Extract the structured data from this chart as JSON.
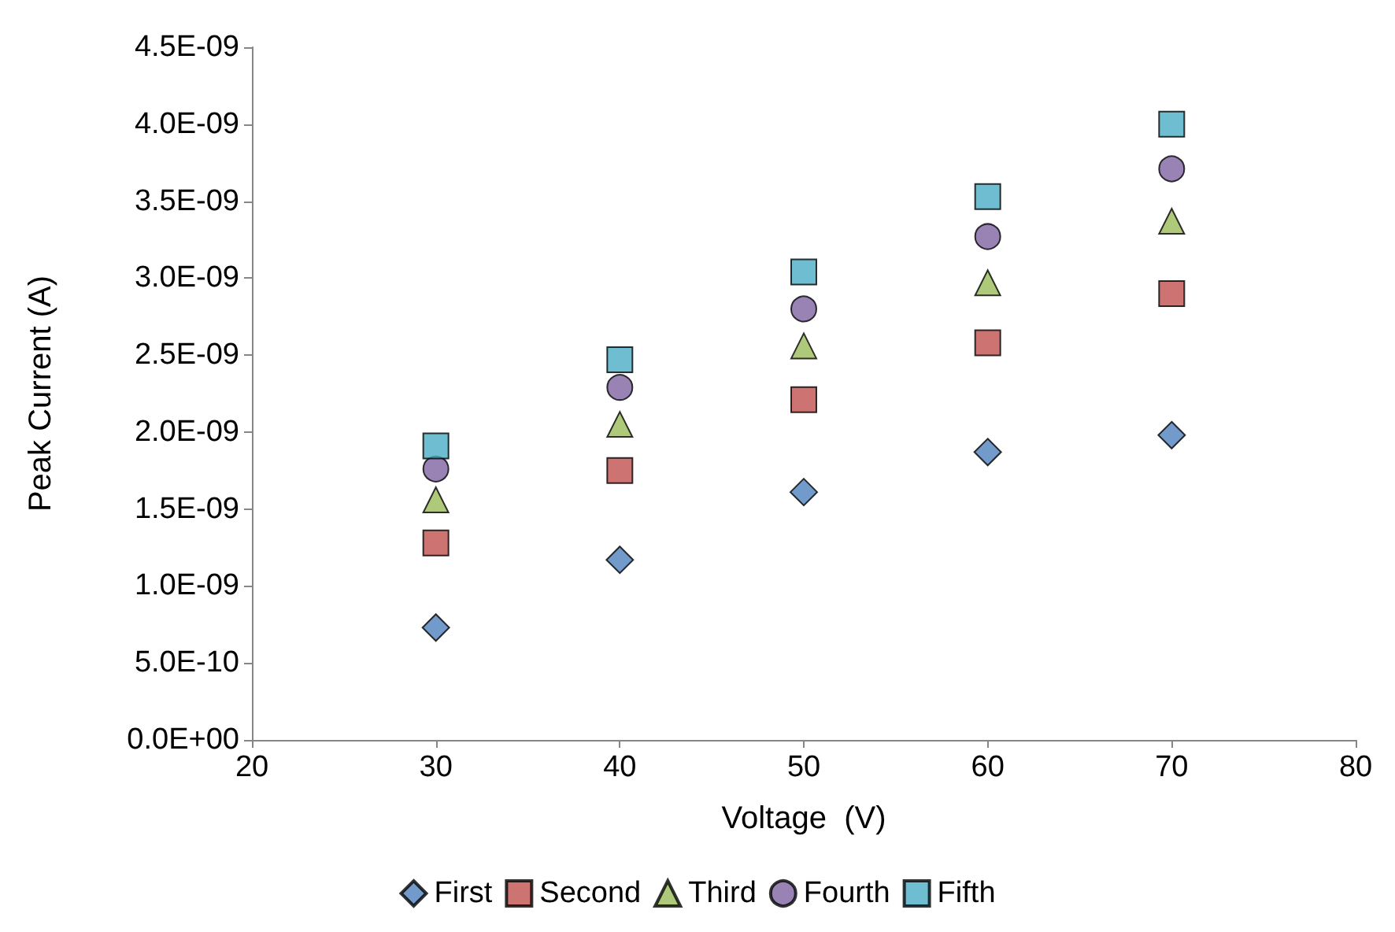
{
  "chart_data": {
    "type": "scatter",
    "xlabel": "Voltage  (V)",
    "ylabel": "Peak Current (A)",
    "x": [
      30,
      40,
      50,
      60,
      70
    ],
    "series": [
      {
        "name": "First",
        "color": "#4f81bd",
        "marker": "diamond",
        "values": [
          7.3e-10,
          1.17e-09,
          1.61e-09,
          1.87e-09,
          1.98e-09
        ]
      },
      {
        "name": "Second",
        "color": "#c0504d",
        "marker": "square",
        "values": [
          1.28e-09,
          1.75e-09,
          2.21e-09,
          2.58e-09,
          2.9e-09
        ]
      },
      {
        "name": "Third",
        "color": "#9bbb59",
        "marker": "triangle",
        "values": [
          1.56e-09,
          2.05e-09,
          2.56e-09,
          2.97e-09,
          3.37e-09
        ]
      },
      {
        "name": "Fourth",
        "color": "#8064a2",
        "marker": "circle",
        "values": [
          1.76e-09,
          2.29e-09,
          2.8e-09,
          3.27e-09,
          3.71e-09
        ]
      },
      {
        "name": "Fifth",
        "color": "#4bacc6",
        "marker": "square",
        "values": [
          1.91e-09,
          2.47e-09,
          3.04e-09,
          3.53e-09,
          4e-09
        ]
      }
    ],
    "xlim": [
      20,
      80
    ],
    "xticks": [
      20,
      30,
      40,
      50,
      60,
      70,
      80
    ],
    "ylim": [
      0,
      4.5e-09
    ],
    "yticks": [
      {
        "value": 0,
        "label": "0.0E+00"
      },
      {
        "value": 5e-10,
        "label": "5.0E-10"
      },
      {
        "value": 1e-09,
        "label": "1.0E-09"
      },
      {
        "value": 1.5e-09,
        "label": "1.5E-09"
      },
      {
        "value": 2e-09,
        "label": "2.0E-09"
      },
      {
        "value": 2.5e-09,
        "label": "2.5E-09"
      },
      {
        "value": 3e-09,
        "label": "3.0E-09"
      },
      {
        "value": 3.5e-09,
        "label": "3.5E-09"
      },
      {
        "value": 4e-09,
        "label": "4.0E-09"
      },
      {
        "value": 4.5e-09,
        "label": "4.5E-09"
      }
    ],
    "grid": false,
    "legend": "bottom"
  }
}
